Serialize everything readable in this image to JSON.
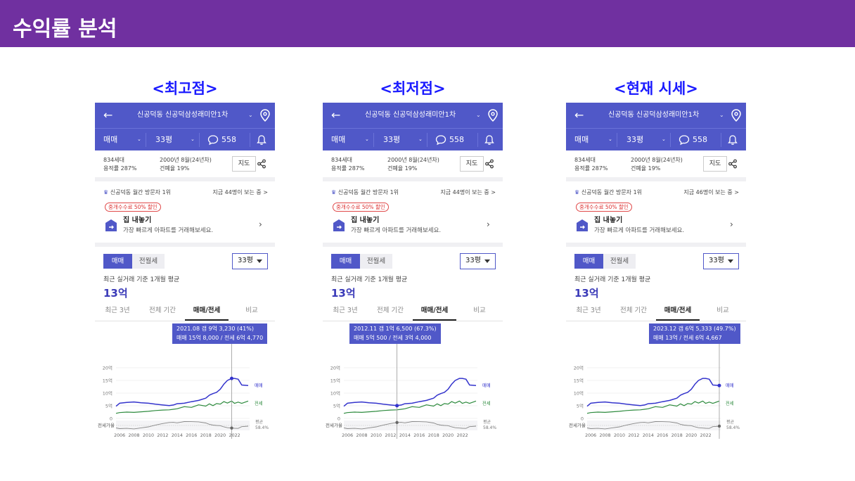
{
  "slide_title": "수익률 분석",
  "app": {
    "apartment_name": "신공덕동 신공덕삼성래미안1차",
    "deal_type": "매매",
    "size": "33평",
    "comments": "558",
    "households": "834세대",
    "floor_area_ratio": "용적률 287%",
    "built": "2000년 8월(24년차)",
    "coverage": "건폐율 19%",
    "map_button": "지도",
    "visitor_rank": "신공덕동 월간 방문자 1위",
    "discount_badge": "중개수수료 50% 할인",
    "sell_title": "집 내놓기",
    "sell_subtitle": "가장 빠르게 아파트를 거래해보세요.",
    "toggle_sale": "매매",
    "toggle_rent": "전월세",
    "size_select": "33평",
    "avg_label": "최근 실거래 기준 1개월 평균",
    "avg_value": "13억",
    "tabs": [
      "최근 3년",
      "전체 기간",
      "매매/전세",
      "비교"
    ],
    "y_ticks": [
      "20억",
      "15억",
      "10억",
      "5억",
      "0"
    ],
    "x_ticks": [
      "2006",
      "2008",
      "2010",
      "2012",
      "2014",
      "2016",
      "2018",
      "2020",
      "2022"
    ],
    "series_sale": "매매",
    "series_jeonse": "전세",
    "ratio_label": "전세가율",
    "ratio_avg_label": "평균",
    "ratio_avg_value": "58.4%"
  },
  "panels": [
    {
      "heading": "<최고점>",
      "watching": "지금 44명이 보는 중 >",
      "tooltip_line1": "2021.08  갭 9억 3,230 (41%)",
      "tooltip_line2": "매매 15억 8,000 / 전세 6억 4,770"
    },
    {
      "heading": "<최저점>",
      "watching": "지금 44명이 보는 중 >",
      "tooltip_line1": "2012.11  갭 1억 6,500 (67.3%)",
      "tooltip_line2": "매매 5억 500 / 전세 3억 4,000"
    },
    {
      "heading": "<현재 시세>",
      "watching": "지금 46명이 보는 중 >",
      "tooltip_line1": "2023.12  갭 6억 5,333 (49.7%)",
      "tooltip_line2": "매매 13억 / 전세 6억 4,667"
    }
  ],
  "chart_data": {
    "type": "line",
    "xlabel": "",
    "ylabel": "",
    "ylim": [
      0,
      20
    ],
    "x": [
      2005.5,
      2006,
      2007,
      2008,
      2009,
      2010,
      2011,
      2012,
      2012.9,
      2013.5,
      2014,
      2015,
      2016,
      2017,
      2018,
      2018.5,
      2019,
      2019.5,
      2020,
      2020.5,
      2021,
      2021.6,
      2022,
      2022.5,
      2023,
      2023.9
    ],
    "series": [
      {
        "name": "매매",
        "values": [
          4.8,
          6.0,
          6.3,
          6.5,
          6.2,
          6.0,
          5.6,
          5.3,
          5.05,
          5.3,
          5.8,
          6.0,
          6.6,
          7.1,
          8.0,
          9.2,
          9.8,
          10.3,
          11.5,
          13.5,
          15.0,
          15.8,
          15.8,
          15.5,
          13.2,
          13.0
        ]
      },
      {
        "name": "전세",
        "values": [
          2.0,
          2.3,
          2.5,
          2.4,
          2.6,
          2.8,
          3.1,
          3.3,
          3.4,
          3.6,
          3.8,
          4.3,
          4.7,
          5.0,
          5.2,
          5.4,
          5.4,
          5.5,
          6.0,
          6.3,
          6.4,
          6.5,
          6.3,
          6.1,
          6.3,
          6.5
        ]
      }
    ],
    "ratio_avg": 58.4,
    "markers": [
      "2021.08",
      "2012.11",
      "2023.12"
    ]
  }
}
